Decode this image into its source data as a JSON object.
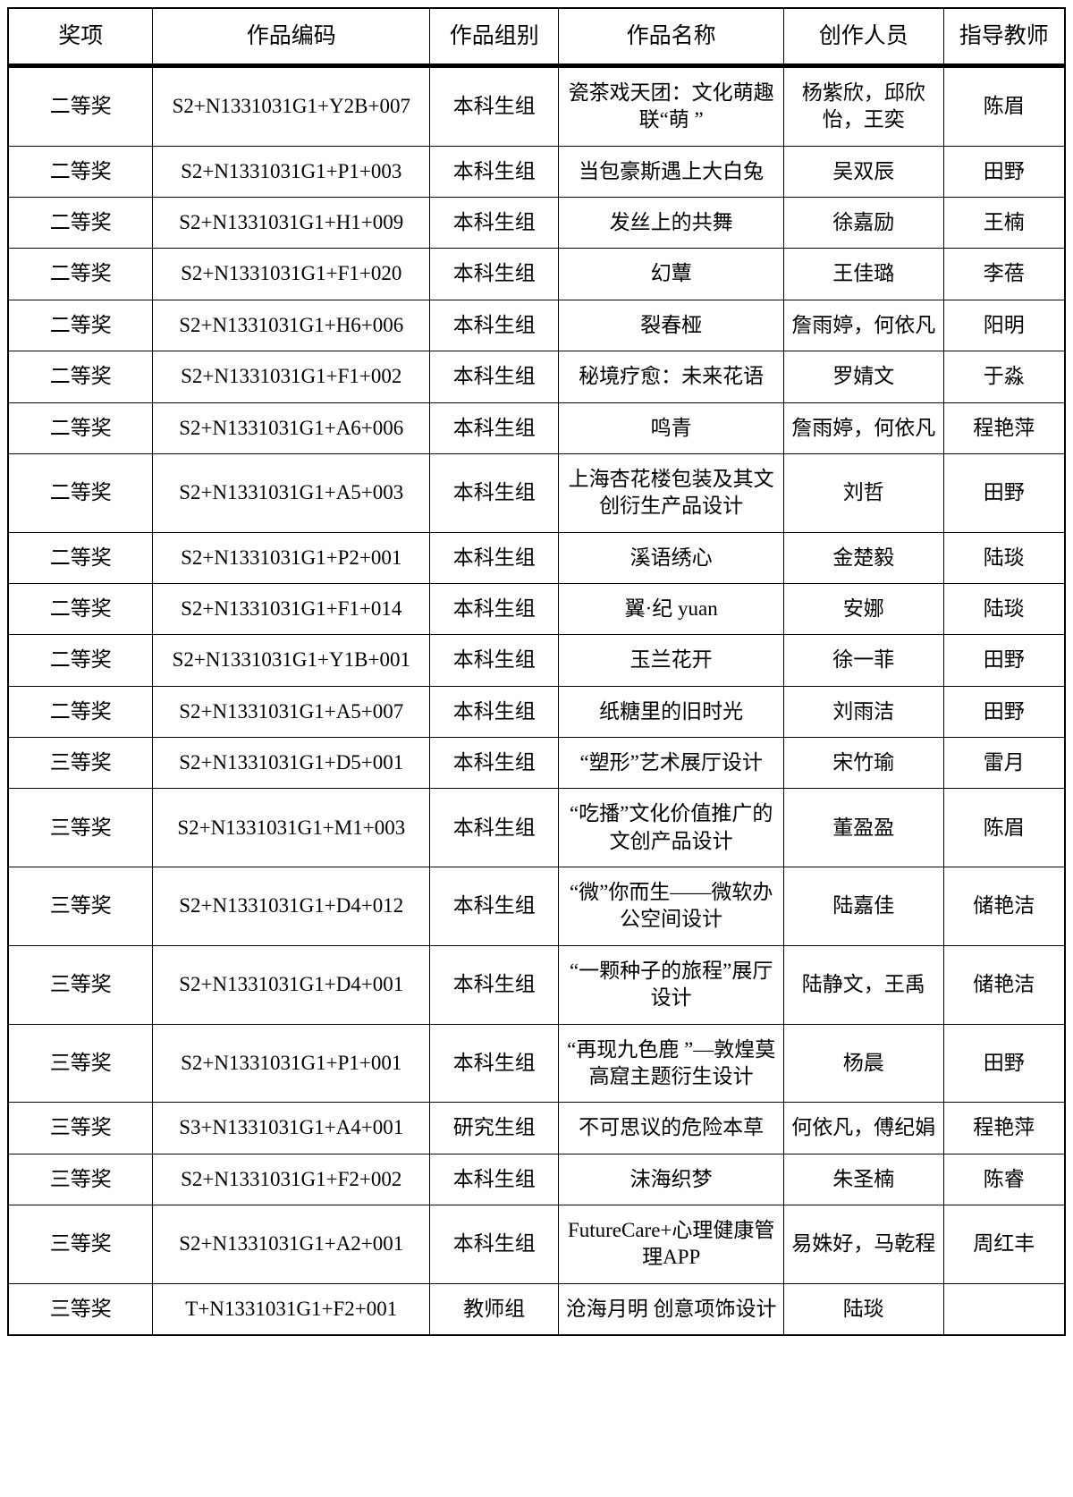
{
  "page": {
    "background_color": "#ffffff",
    "border_color": "#000000",
    "text_color": "#000000"
  },
  "table": {
    "columns": [
      {
        "key": "award",
        "label": "奖项"
      },
      {
        "key": "code",
        "label": "作品编码"
      },
      {
        "key": "group",
        "label": "作品组别"
      },
      {
        "key": "title",
        "label": "作品名称"
      },
      {
        "key": "creators",
        "label": "创作人员"
      },
      {
        "key": "advisor",
        "label": "指导教师"
      }
    ],
    "rows": [
      {
        "award": "二等奖",
        "code": "S2+N1331031G1+Y2B+007",
        "group": "本科生组",
        "title": "瓷茶戏天团：文化萌趣联“萌 ”",
        "creators": "杨紫欣，邱欣怡，王奕",
        "advisor": "陈眉"
      },
      {
        "award": "二等奖",
        "code": "S2+N1331031G1+P1+003",
        "group": "本科生组",
        "title": "当包豪斯遇上大白兔",
        "creators": "吴双辰",
        "advisor": "田野"
      },
      {
        "award": "二等奖",
        "code": "S2+N1331031G1+H1+009",
        "group": "本科生组",
        "title": "发丝上的共舞",
        "creators": "徐嘉励",
        "advisor": "王楠"
      },
      {
        "award": "二等奖",
        "code": "S2+N1331031G1+F1+020",
        "group": "本科生组",
        "title": "幻蕈",
        "creators": "王佳璐",
        "advisor": "李蓓"
      },
      {
        "award": "二等奖",
        "code": "S2+N1331031G1+H6+006",
        "group": "本科生组",
        "title": "裂春桠",
        "creators": "詹雨婷，何依凡",
        "advisor": "阳明"
      },
      {
        "award": "二等奖",
        "code": "S2+N1331031G1+F1+002",
        "group": "本科生组",
        "title": "秘境疗愈：未来花语",
        "creators": "罗婧文",
        "advisor": "于淼"
      },
      {
        "award": "二等奖",
        "code": "S2+N1331031G1+A6+006",
        "group": "本科生组",
        "title": "鸣青",
        "creators": "詹雨婷，何依凡",
        "advisor": "程艳萍"
      },
      {
        "award": "二等奖",
        "code": "S2+N1331031G1+A5+003",
        "group": "本科生组",
        "title": "上海杏花楼包装及其文创衍生产品设计",
        "creators": "刘哲",
        "advisor": "田野"
      },
      {
        "award": "二等奖",
        "code": "S2+N1331031G1+P2+001",
        "group": "本科生组",
        "title": "溪语绣心",
        "creators": "金楚毅",
        "advisor": "陆琰"
      },
      {
        "award": "二等奖",
        "code": "S2+N1331031G1+F1+014",
        "group": "本科生组",
        "title": "翼·纪 yuan",
        "creators": "安娜",
        "advisor": "陆琰"
      },
      {
        "award": "二等奖",
        "code": "S2+N1331031G1+Y1B+001",
        "group": "本科生组",
        "title": "玉兰花开",
        "creators": "徐一菲",
        "advisor": "田野"
      },
      {
        "award": "二等奖",
        "code": "S2+N1331031G1+A5+007",
        "group": "本科生组",
        "title": "纸糖里的旧时光",
        "creators": "刘雨洁",
        "advisor": "田野"
      },
      {
        "award": "三等奖",
        "code": "S2+N1331031G1+D5+001",
        "group": "本科生组",
        "title": "“塑形”艺术展厅设计",
        "creators": "宋竹瑜",
        "advisor": "雷月"
      },
      {
        "award": "三等奖",
        "code": "S2+N1331031G1+M1+003",
        "group": "本科生组",
        "title": "“吃播”文化价值推广的文创产品设计",
        "creators": "董盈盈",
        "advisor": "陈眉"
      },
      {
        "award": "三等奖",
        "code": "S2+N1331031G1+D4+012",
        "group": "本科生组",
        "title": "“微”你而生——微软办公空间设计",
        "creators": "陆嘉佳",
        "advisor": "储艳洁"
      },
      {
        "award": "三等奖",
        "code": "S2+N1331031G1+D4+001",
        "group": "本科生组",
        "title": "“一颗种子的旅程”展厅设计",
        "creators": "陆静文，王禹",
        "advisor": "储艳洁"
      },
      {
        "award": "三等奖",
        "code": "S2+N1331031G1+P1+001",
        "group": "本科生组",
        "title": "“再现九色鹿 ”—敦煌莫高窟主题衍生设计",
        "creators": "杨晨",
        "advisor": "田野"
      },
      {
        "award": "三等奖",
        "code": "S3+N1331031G1+A4+001",
        "group": "研究生组",
        "title": "不可思议的危险本草",
        "creators": "何依凡，傅纪娟",
        "advisor": "程艳萍"
      },
      {
        "award": "三等奖",
        "code": "S2+N1331031G1+F2+002",
        "group": "本科生组",
        "title": "沫海织梦",
        "creators": "朱圣楠",
        "advisor": "陈睿"
      },
      {
        "award": "三等奖",
        "code": "S2+N1331031G1+A2+001",
        "group": "本科生组",
        "title": "FutureCare+心理健康管理APP",
        "creators": "易姝好，马乾程",
        "advisor": "周红丰"
      },
      {
        "award": "三等奖",
        "code": "T+N1331031G1+F2+001",
        "group": "教师组",
        "title": "沧海月明  创意项饰设计",
        "creators": "陆琰",
        "advisor": ""
      }
    ]
  }
}
